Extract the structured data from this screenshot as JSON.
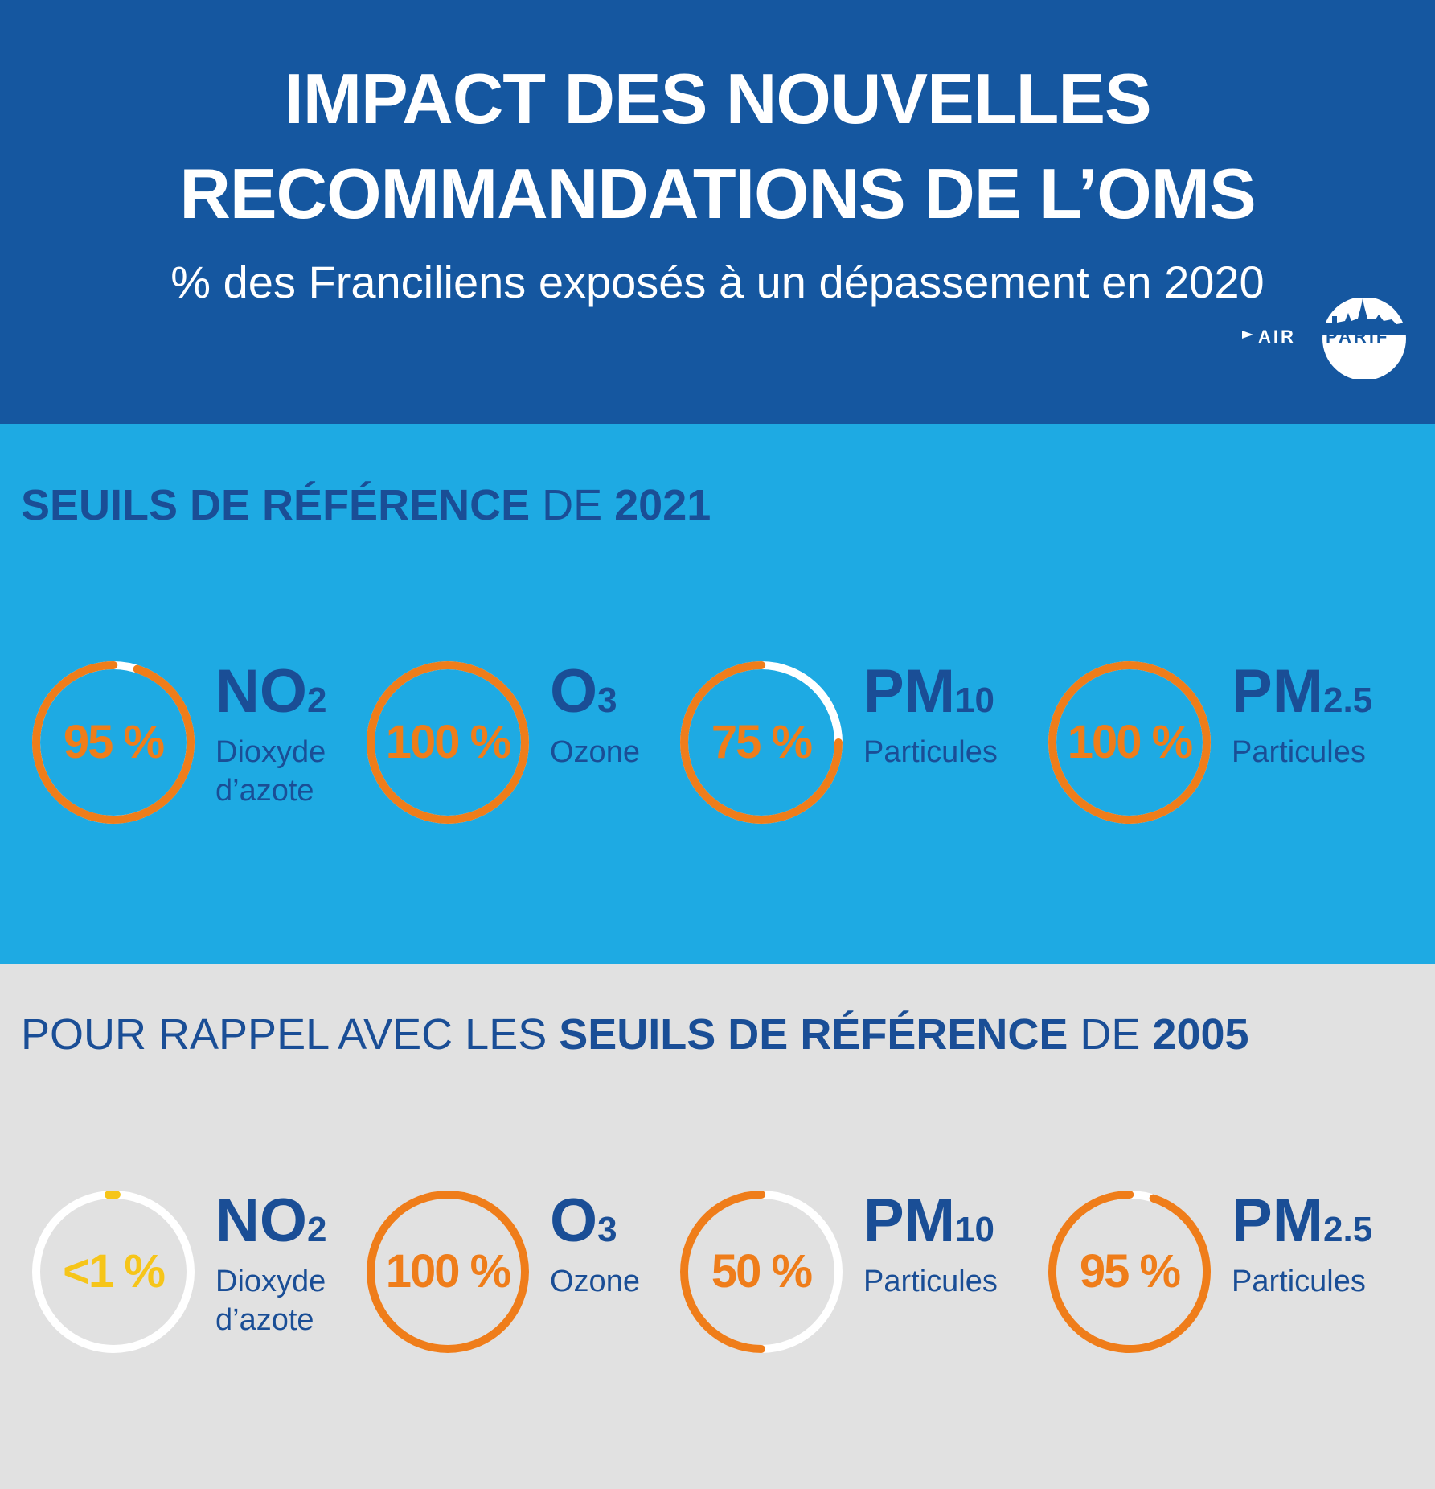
{
  "header": {
    "title_line1": "IMPACT DES NOUVELLES",
    "title_line2": "RECOMMANDATIONS DE L’OMS",
    "subtitle": "% des Franciliens exposés à un dépassement en 2020",
    "logo_text_left": "AIR",
    "logo_text_right": "PARIF"
  },
  "colors": {
    "header_bg": "#1557a0",
    "section_2021_bg": "#1eaae3",
    "section_2005_bg": "#e1e1e1",
    "heading_text": "#1a4e96",
    "ring_orange": "#ef7d1a",
    "ring_yellow": "#f6c519",
    "ring_track": "#ffffff"
  },
  "section_2021": {
    "heading_bold1": "SEUILS DE RÉFÉRENCE",
    "heading_normal1": " DE ",
    "heading_bold2": "2021",
    "items": [
      {
        "value_label": "95 %",
        "fraction": 0.95,
        "formula": "NO",
        "sub": "2",
        "desc1": "Dioxyde",
        "desc2": "d’azote",
        "color": "#ef7d1a"
      },
      {
        "value_label": "100 %",
        "fraction": 1.0,
        "formula": "O",
        "sub": "3",
        "desc1": "Ozone",
        "desc2": "",
        "color": "#ef7d1a"
      },
      {
        "value_label": "75 %",
        "fraction": 0.75,
        "formula": "PM",
        "sub": "10",
        "desc1": "Particules",
        "desc2": "",
        "color": "#ef7d1a"
      },
      {
        "value_label": "100 %",
        "fraction": 1.0,
        "formula": "PM",
        "sub": "2.5",
        "desc1": "Particules",
        "desc2": "",
        "color": "#ef7d1a"
      }
    ]
  },
  "section_2005": {
    "heading_normal1": "POUR RAPPEL AVEC LES ",
    "heading_bold1": "SEUILS DE RÉFÉRENCE",
    "heading_normal2": " DE ",
    "heading_bold2": "2005",
    "items": [
      {
        "value_label": "<1 %",
        "fraction": 0.01,
        "formula": "NO",
        "sub": "2",
        "desc1": "Dioxyde",
        "desc2": "d’azote",
        "color": "#f6c519"
      },
      {
        "value_label": "100 %",
        "fraction": 1.0,
        "formula": "O",
        "sub": "3",
        "desc1": "Ozone",
        "desc2": "",
        "color": "#ef7d1a"
      },
      {
        "value_label": "50 %",
        "fraction": 0.5,
        "formula": "PM",
        "sub": "10",
        "desc1": "Particules",
        "desc2": "",
        "color": "#ef7d1a"
      },
      {
        "value_label": "95 %",
        "fraction": 0.95,
        "formula": "PM",
        "sub": "2.5",
        "desc1": "Particules",
        "desc2": "",
        "color": "#ef7d1a"
      }
    ]
  }
}
